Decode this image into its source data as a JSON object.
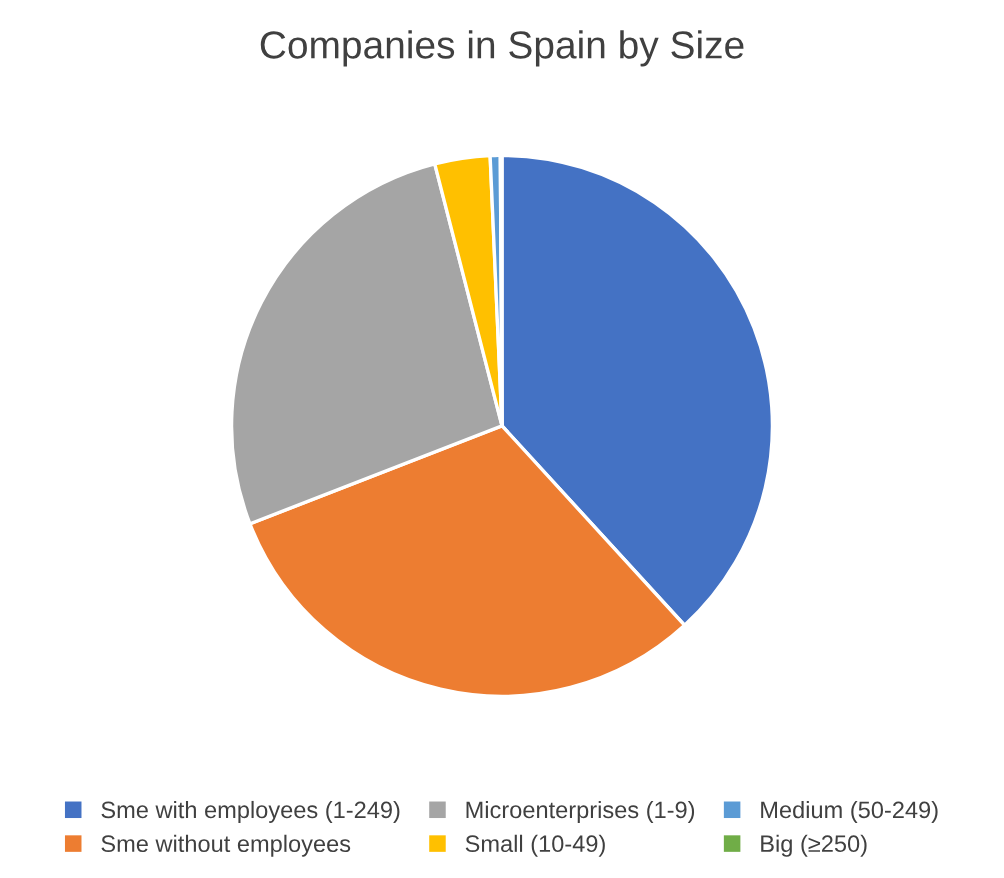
{
  "chart_data": {
    "type": "pie",
    "title": "Companies in Spain by Size",
    "categories": [
      "Sme with employees (1-249)",
      "Sme without employees",
      "Microenterprises (1-9)",
      "Small (10-49)",
      "Medium (50-249)",
      "Big (≥250)"
    ],
    "values": [
      38.2,
      30.9,
      26.9,
      3.3,
      0.6,
      0.1
    ],
    "colors": [
      "#4472c4",
      "#ed7d31",
      "#a5a5a5",
      "#ffc000",
      "#5b9bd5",
      "#70ad47"
    ],
    "legend": "bottom"
  }
}
